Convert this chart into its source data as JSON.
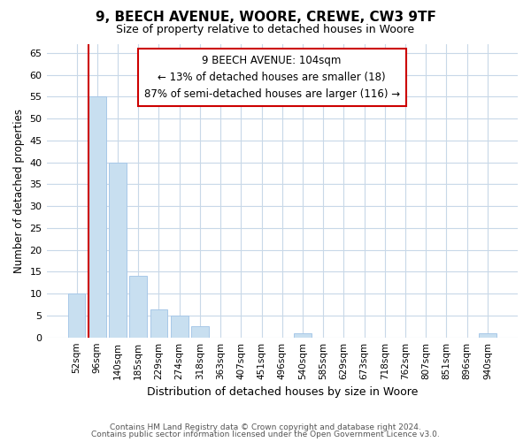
{
  "title": "9, BEECH AVENUE, WOORE, CREWE, CW3 9TF",
  "subtitle": "Size of property relative to detached houses in Woore",
  "xlabel": "Distribution of detached houses by size in Woore",
  "ylabel": "Number of detached properties",
  "bin_labels": [
    "52sqm",
    "96sqm",
    "140sqm",
    "185sqm",
    "229sqm",
    "274sqm",
    "318sqm",
    "363sqm",
    "407sqm",
    "451sqm",
    "496sqm",
    "540sqm",
    "585sqm",
    "629sqm",
    "673sqm",
    "718sqm",
    "762sqm",
    "807sqm",
    "851sqm",
    "896sqm",
    "940sqm"
  ],
  "bar_heights": [
    10,
    55,
    40,
    14,
    6.5,
    5,
    2.5,
    0,
    0,
    0,
    0,
    1,
    0,
    0,
    0,
    0,
    0,
    0,
    0,
    0,
    1
  ],
  "bar_color": "#c8dff0",
  "bar_edge_color": "#a8c8e8",
  "property_line_color": "#cc0000",
  "ylim": [
    0,
    67
  ],
  "yticks": [
    0,
    5,
    10,
    15,
    20,
    25,
    30,
    35,
    40,
    45,
    50,
    55,
    60,
    65
  ],
  "annotation_title": "9 BEECH AVENUE: 104sqm",
  "annotation_line1": "← 13% of detached houses are smaller (18)",
  "annotation_line2": "87% of semi-detached houses are larger (116) →",
  "annotation_box_color": "#ffffff",
  "annotation_box_edge": "#cc0000",
  "footer_line1": "Contains HM Land Registry data © Crown copyright and database right 2024.",
  "footer_line2": "Contains public sector information licensed under the Open Government Licence v3.0.",
  "background_color": "#ffffff",
  "grid_color": "#c8d8e8"
}
